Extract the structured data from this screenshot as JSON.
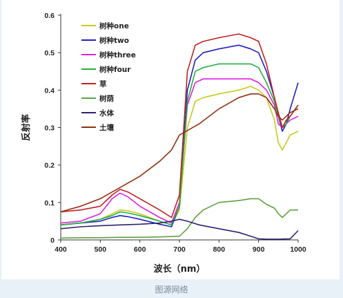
{
  "caption": "图源网络",
  "chart_data": {
    "type": "line",
    "title": "",
    "xlabel": "波长（nm）",
    "ylabel": "反射率",
    "xlim": [
      400,
      1000
    ],
    "ylim": [
      0,
      0.6
    ],
    "xticks": [
      400,
      500,
      600,
      700,
      800,
      900,
      1000
    ],
    "yticks": [
      0,
      0.1,
      0.2,
      0.3,
      0.4,
      0.5,
      0.6
    ],
    "ytick_labels": [
      "0",
      "0.1",
      "0.2",
      "0.3",
      "0.4",
      "0.5",
      "0.6"
    ],
    "grid": false,
    "legend_position": "top-left",
    "series": [
      {
        "name": "树种one",
        "color": "#c8c820",
        "x": [
          400,
          450,
          500,
          530,
          550,
          570,
          600,
          650,
          680,
          700,
          720,
          740,
          760,
          800,
          850,
          880,
          900,
          920,
          940,
          950,
          960,
          970,
          980,
          1000
        ],
        "y": [
          0.04,
          0.045,
          0.055,
          0.07,
          0.08,
          0.078,
          0.07,
          0.05,
          0.04,
          0.08,
          0.3,
          0.37,
          0.38,
          0.39,
          0.4,
          0.41,
          0.4,
          0.38,
          0.32,
          0.26,
          0.24,
          0.26,
          0.28,
          0.29
        ]
      },
      {
        "name": "树种two",
        "color": "#2020c0",
        "x": [
          400,
          450,
          500,
          530,
          550,
          570,
          600,
          650,
          680,
          700,
          720,
          740,
          760,
          800,
          850,
          880,
          900,
          920,
          940,
          950,
          960,
          970,
          980,
          1000
        ],
        "y": [
          0.04,
          0.045,
          0.05,
          0.06,
          0.065,
          0.062,
          0.055,
          0.042,
          0.035,
          0.09,
          0.4,
          0.48,
          0.5,
          0.51,
          0.52,
          0.51,
          0.5,
          0.45,
          0.38,
          0.33,
          0.29,
          0.31,
          0.35,
          0.42
        ]
      },
      {
        "name": "树种three",
        "color": "#e020e0",
        "x": [
          400,
          450,
          500,
          530,
          550,
          570,
          600,
          650,
          680,
          700,
          720,
          740,
          760,
          800,
          850,
          880,
          900,
          920,
          940,
          950,
          960,
          970,
          980,
          1000
        ],
        "y": [
          0.045,
          0.05,
          0.07,
          0.11,
          0.125,
          0.115,
          0.09,
          0.06,
          0.045,
          0.1,
          0.36,
          0.42,
          0.43,
          0.43,
          0.43,
          0.43,
          0.42,
          0.4,
          0.36,
          0.31,
          0.3,
          0.31,
          0.32,
          0.33
        ]
      },
      {
        "name": "树种four",
        "color": "#20b040",
        "x": [
          400,
          450,
          500,
          530,
          550,
          570,
          600,
          650,
          680,
          700,
          720,
          740,
          760,
          800,
          850,
          880,
          900,
          920,
          940,
          950,
          960,
          970,
          980,
          1000
        ],
        "y": [
          0.04,
          0.045,
          0.055,
          0.065,
          0.075,
          0.072,
          0.065,
          0.05,
          0.04,
          0.09,
          0.37,
          0.45,
          0.46,
          0.47,
          0.47,
          0.47,
          0.46,
          0.42,
          0.37,
          0.33,
          0.3,
          0.31,
          0.33,
          0.36
        ]
      },
      {
        "name": "草",
        "color": "#c02020",
        "x": [
          400,
          450,
          500,
          530,
          550,
          570,
          600,
          650,
          680,
          700,
          720,
          740,
          760,
          800,
          850,
          880,
          900,
          920,
          940,
          950,
          960,
          970,
          980,
          1000
        ],
        "y": [
          0.075,
          0.08,
          0.09,
          0.12,
          0.135,
          0.128,
          0.11,
          0.08,
          0.06,
          0.12,
          0.45,
          0.52,
          0.53,
          0.54,
          0.55,
          0.54,
          0.53,
          0.47,
          0.38,
          0.34,
          0.3,
          0.32,
          0.33,
          0.36
        ]
      },
      {
        "name": "树荫",
        "color": "#60a040",
        "x": [
          400,
          450,
          500,
          550,
          600,
          650,
          700,
          720,
          740,
          760,
          800,
          850,
          880,
          900,
          920,
          940,
          950,
          960,
          970,
          980,
          1000
        ],
        "y": [
          0.005,
          0.006,
          0.006,
          0.007,
          0.007,
          0.008,
          0.01,
          0.03,
          0.06,
          0.08,
          0.1,
          0.105,
          0.11,
          0.11,
          0.095,
          0.085,
          0.07,
          0.06,
          0.07,
          0.08,
          0.08
        ]
      },
      {
        "name": "水体",
        "color": "#302070",
        "x": [
          400,
          450,
          500,
          550,
          600,
          650,
          680,
          700,
          720,
          750,
          800,
          850,
          880,
          900,
          920,
          950,
          980,
          1000
        ],
        "y": [
          0.03,
          0.035,
          0.038,
          0.04,
          0.042,
          0.045,
          0.05,
          0.055,
          0.05,
          0.04,
          0.03,
          0.02,
          0.01,
          0.003,
          0.002,
          0.002,
          0.003,
          0.025
        ]
      },
      {
        "name": "土壤",
        "color": "#903010",
        "x": [
          400,
          450,
          500,
          550,
          600,
          650,
          680,
          700,
          750,
          800,
          850,
          880,
          900,
          920,
          940,
          950,
          960,
          970,
          980,
          1000
        ],
        "y": [
          0.075,
          0.09,
          0.11,
          0.14,
          0.17,
          0.21,
          0.24,
          0.28,
          0.31,
          0.35,
          0.38,
          0.39,
          0.39,
          0.38,
          0.35,
          0.33,
          0.32,
          0.33,
          0.34,
          0.35
        ]
      }
    ]
  }
}
